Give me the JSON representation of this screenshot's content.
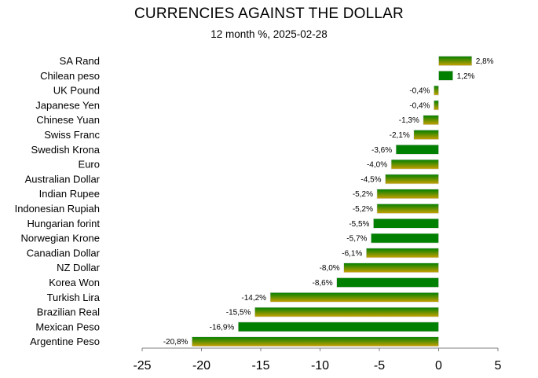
{
  "chart_data": {
    "type": "bar",
    "orientation": "horizontal",
    "title": "CURRENCIES AGAINST THE DOLLAR",
    "subtitle": "12 month %, 2025-02-28",
    "categories": [
      "SA Rand",
      "Chilean peso",
      "UK Pound",
      "Japanese Yen",
      "Chinese Yuan",
      "Swiss Franc",
      "Swedish Krona",
      "Euro",
      "Australian Dollar",
      "Indian Rupee",
      "Indonesian Rupiah",
      "Hungarian forint",
      "Norwegian Krone",
      "Canadian Dollar",
      "NZ Dollar",
      "Korea Won",
      "Turkish Lira",
      "Brazilian Real",
      "Mexican Peso",
      "Argentine Peso"
    ],
    "values": [
      2.8,
      1.2,
      -0.4,
      -0.4,
      -1.3,
      -2.1,
      -3.6,
      -4.0,
      -4.5,
      -5.2,
      -5.2,
      -5.5,
      -5.7,
      -6.1,
      -8.0,
      -8.6,
      -14.2,
      -15.5,
      -16.9,
      -20.8
    ],
    "value_labels": [
      "2,8%",
      "1,2%",
      "-0,4%",
      "-0,4%",
      "-1,3%",
      "-2,1%",
      "-3,6%",
      "-4,0%",
      "-4,5%",
      "-5,2%",
      "-5,2%",
      "-5,5%",
      "-5,7%",
      "-6,1%",
      "-8,0%",
      "-8,6%",
      "-14,2%",
      "-15,5%",
      "-16,9%",
      "-20,8%"
    ],
    "bar_style": [
      "gradient",
      "solid",
      "gradient",
      "gradient",
      "gradient",
      "gradient",
      "solid",
      "gradient",
      "gradient",
      "gradient",
      "gradient",
      "solid",
      "solid",
      "gradient",
      "gradient",
      "solid",
      "gradient",
      "gradient",
      "solid",
      "gradient"
    ],
    "xlim": [
      -25,
      5
    ],
    "xticks": [
      -25,
      -20,
      -15,
      -10,
      -5,
      0,
      5
    ],
    "xlabel": "",
    "ylabel": "",
    "grid": false,
    "legend": "none",
    "colors": {
      "green": "#008000",
      "gold": "#c8a000",
      "axis": "#7f7f7f"
    }
  }
}
